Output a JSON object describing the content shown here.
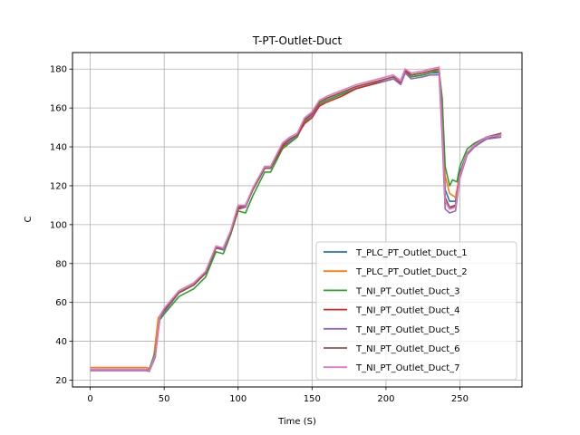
{
  "chart_data": {
    "type": "line",
    "title": "T-PT-Outlet-Duct",
    "xlabel": "Time (S)",
    "ylabel": "C",
    "xlim": [
      -12,
      292
    ],
    "ylim": [
      16.5,
      188.5
    ],
    "xticks": [
      0,
      50,
      100,
      150,
      200,
      250
    ],
    "yticks": [
      20,
      40,
      60,
      80,
      100,
      120,
      140,
      160,
      180
    ],
    "grid": true,
    "legend_position": "lower-right",
    "series": [
      {
        "name": "T_PLC_PT_Outlet_Duct_1",
        "color": "#1f77b4",
        "points": [
          [
            0,
            25.5
          ],
          [
            38,
            25.5
          ],
          [
            40,
            25
          ],
          [
            43,
            30
          ],
          [
            46,
            50
          ],
          [
            50,
            56
          ],
          [
            60,
            65
          ],
          [
            70,
            69
          ],
          [
            78,
            75
          ],
          [
            85,
            88
          ],
          [
            90,
            88
          ],
          [
            95,
            96
          ],
          [
            100,
            108
          ],
          [
            105,
            110
          ],
          [
            110,
            118
          ],
          [
            118,
            129
          ],
          [
            122,
            129
          ],
          [
            130,
            140
          ],
          [
            135,
            144
          ],
          [
            140,
            146
          ],
          [
            145,
            154
          ],
          [
            150,
            156
          ],
          [
            155,
            162
          ],
          [
            160,
            164
          ],
          [
            170,
            167
          ],
          [
            180,
            170
          ],
          [
            190,
            172
          ],
          [
            200,
            174
          ],
          [
            205,
            175
          ],
          [
            210,
            173
          ],
          [
            213,
            178
          ],
          [
            217,
            176
          ],
          [
            225,
            177
          ],
          [
            230,
            178
          ],
          [
            236,
            178
          ],
          [
            238,
            160
          ],
          [
            240,
            118
          ],
          [
            243,
            112
          ],
          [
            247,
            112
          ],
          [
            250,
            127
          ],
          [
            255,
            137
          ],
          [
            260,
            141
          ],
          [
            268,
            144
          ],
          [
            278,
            146
          ]
        ]
      },
      {
        "name": "T_PLC_PT_Outlet_Duct_2",
        "color": "#ff7f0e",
        "points": [
          [
            0,
            26.5
          ],
          [
            38,
            26.5
          ],
          [
            40,
            26
          ],
          [
            43,
            32
          ],
          [
            46,
            52
          ],
          [
            50,
            56
          ],
          [
            60,
            66
          ],
          [
            70,
            70
          ],
          [
            78,
            75
          ],
          [
            85,
            88
          ],
          [
            90,
            88
          ],
          [
            95,
            96
          ],
          [
            100,
            109
          ],
          [
            105,
            110
          ],
          [
            110,
            118
          ],
          [
            118,
            129
          ],
          [
            122,
            129
          ],
          [
            130,
            141
          ],
          [
            135,
            144
          ],
          [
            140,
            146
          ],
          [
            145,
            154
          ],
          [
            150,
            157
          ],
          [
            155,
            163
          ],
          [
            160,
            165
          ],
          [
            170,
            168
          ],
          [
            180,
            171
          ],
          [
            190,
            173
          ],
          [
            200,
            175
          ],
          [
            205,
            176
          ],
          [
            210,
            174
          ],
          [
            213,
            179
          ],
          [
            217,
            177
          ],
          [
            225,
            178
          ],
          [
            230,
            179
          ],
          [
            236,
            179
          ],
          [
            238,
            165
          ],
          [
            240,
            125
          ],
          [
            243,
            116
          ],
          [
            247,
            114
          ],
          [
            250,
            126
          ],
          [
            255,
            137
          ],
          [
            260,
            141
          ],
          [
            268,
            145
          ],
          [
            278,
            147
          ]
        ]
      },
      {
        "name": "T_NI_PT_Outlet_Duct_3",
        "color": "#2ca02c",
        "points": [
          [
            0,
            25.5
          ],
          [
            38,
            25.5
          ],
          [
            40,
            25.5
          ],
          [
            44,
            35
          ],
          [
            47,
            51
          ],
          [
            50,
            54
          ],
          [
            60,
            63
          ],
          [
            70,
            67
          ],
          [
            78,
            73
          ],
          [
            85,
            86
          ],
          [
            90,
            85
          ],
          [
            95,
            95
          ],
          [
            100,
            107
          ],
          [
            105,
            106
          ],
          [
            110,
            115
          ],
          [
            118,
            127
          ],
          [
            122,
            127
          ],
          [
            130,
            139
          ],
          [
            135,
            142
          ],
          [
            140,
            145
          ],
          [
            145,
            153
          ],
          [
            150,
            156
          ],
          [
            155,
            162
          ],
          [
            160,
            164
          ],
          [
            170,
            167
          ],
          [
            180,
            170
          ],
          [
            190,
            172
          ],
          [
            200,
            174
          ],
          [
            205,
            175
          ],
          [
            210,
            173
          ],
          [
            213,
            178
          ],
          [
            217,
            176
          ],
          [
            225,
            177
          ],
          [
            230,
            178
          ],
          [
            236,
            179
          ],
          [
            238,
            165
          ],
          [
            240,
            130
          ],
          [
            243,
            120
          ],
          [
            245,
            123
          ],
          [
            248,
            122
          ],
          [
            250,
            130
          ],
          [
            255,
            139
          ],
          [
            260,
            142
          ],
          [
            268,
            145
          ],
          [
            278,
            146
          ]
        ]
      },
      {
        "name": "T_NI_PT_Outlet_Duct_4",
        "color": "#d62728",
        "points": [
          [
            0,
            25
          ],
          [
            38,
            25
          ],
          [
            40,
            25
          ],
          [
            44,
            33
          ],
          [
            47,
            53
          ],
          [
            50,
            56
          ],
          [
            60,
            65
          ],
          [
            70,
            69
          ],
          [
            78,
            75
          ],
          [
            85,
            88
          ],
          [
            90,
            87
          ],
          [
            95,
            96
          ],
          [
            100,
            108
          ],
          [
            105,
            109
          ],
          [
            110,
            118
          ],
          [
            118,
            129
          ],
          [
            122,
            129
          ],
          [
            130,
            140
          ],
          [
            135,
            143
          ],
          [
            140,
            146
          ],
          [
            145,
            152
          ],
          [
            150,
            155
          ],
          [
            155,
            161
          ],
          [
            160,
            163
          ],
          [
            170,
            166
          ],
          [
            180,
            170
          ],
          [
            190,
            172
          ],
          [
            200,
            174
          ],
          [
            205,
            175
          ],
          [
            210,
            173
          ],
          [
            213,
            179
          ],
          [
            217,
            177
          ],
          [
            225,
            178
          ],
          [
            230,
            179
          ],
          [
            236,
            180
          ],
          [
            238,
            150
          ],
          [
            240,
            112
          ],
          [
            243,
            108
          ],
          [
            247,
            110
          ],
          [
            250,
            126
          ],
          [
            255,
            137
          ],
          [
            260,
            141
          ],
          [
            268,
            145
          ],
          [
            278,
            146
          ]
        ]
      },
      {
        "name": "T_NI_PT_Outlet_Duct_5",
        "color": "#9467bd",
        "points": [
          [
            0,
            25
          ],
          [
            38,
            25
          ],
          [
            40,
            24.5
          ],
          [
            44,
            32
          ],
          [
            47,
            52
          ],
          [
            50,
            55
          ],
          [
            60,
            65
          ],
          [
            70,
            69
          ],
          [
            78,
            75
          ],
          [
            85,
            88
          ],
          [
            90,
            87
          ],
          [
            95,
            96
          ],
          [
            100,
            109
          ],
          [
            105,
            109
          ],
          [
            110,
            118
          ],
          [
            118,
            129
          ],
          [
            122,
            129
          ],
          [
            130,
            141
          ],
          [
            135,
            143
          ],
          [
            140,
            146
          ],
          [
            145,
            154
          ],
          [
            150,
            156
          ],
          [
            155,
            163
          ],
          [
            160,
            165
          ],
          [
            170,
            168
          ],
          [
            180,
            171
          ],
          [
            190,
            173
          ],
          [
            200,
            174
          ],
          [
            205,
            175
          ],
          [
            210,
            172
          ],
          [
            213,
            178
          ],
          [
            217,
            175
          ],
          [
            225,
            176
          ],
          [
            230,
            177
          ],
          [
            236,
            177
          ],
          [
            238,
            145
          ],
          [
            240,
            108
          ],
          [
            243,
            106
          ],
          [
            247,
            107
          ],
          [
            250,
            124
          ],
          [
            255,
            136
          ],
          [
            260,
            140
          ],
          [
            268,
            144
          ],
          [
            278,
            145
          ]
        ]
      },
      {
        "name": "T_NI_PT_Outlet_Duct_6",
        "color": "#8c564b",
        "points": [
          [
            0,
            25.5
          ],
          [
            38,
            25.5
          ],
          [
            40,
            25
          ],
          [
            44,
            33
          ],
          [
            47,
            53
          ],
          [
            50,
            56
          ],
          [
            60,
            65
          ],
          [
            70,
            69
          ],
          [
            78,
            75
          ],
          [
            85,
            88
          ],
          [
            90,
            88
          ],
          [
            95,
            96
          ],
          [
            100,
            109
          ],
          [
            105,
            110
          ],
          [
            110,
            118
          ],
          [
            118,
            129
          ],
          [
            122,
            129
          ],
          [
            130,
            141
          ],
          [
            135,
            144
          ],
          [
            140,
            146
          ],
          [
            145,
            154
          ],
          [
            150,
            157
          ],
          [
            155,
            163
          ],
          [
            160,
            165
          ],
          [
            170,
            168
          ],
          [
            180,
            171
          ],
          [
            190,
            173
          ],
          [
            200,
            175
          ],
          [
            205,
            176
          ],
          [
            210,
            174
          ],
          [
            213,
            180
          ],
          [
            217,
            177
          ],
          [
            225,
            178
          ],
          [
            230,
            179
          ],
          [
            236,
            180
          ],
          [
            238,
            155
          ],
          [
            240,
            114
          ],
          [
            243,
            109
          ],
          [
            247,
            110
          ],
          [
            250,
            126
          ],
          [
            255,
            137
          ],
          [
            260,
            141
          ],
          [
            268,
            145
          ],
          [
            278,
            147
          ]
        ]
      },
      {
        "name": "T_NI_PT_Outlet_Duct_7",
        "color": "#e377c2",
        "points": [
          [
            0,
            25.5
          ],
          [
            38,
            25.5
          ],
          [
            40,
            25
          ],
          [
            44,
            33
          ],
          [
            47,
            53
          ],
          [
            50,
            57
          ],
          [
            60,
            66
          ],
          [
            70,
            70
          ],
          [
            78,
            76
          ],
          [
            85,
            89
          ],
          [
            90,
            88
          ],
          [
            95,
            97
          ],
          [
            100,
            110
          ],
          [
            105,
            110
          ],
          [
            110,
            119
          ],
          [
            118,
            130
          ],
          [
            122,
            130
          ],
          [
            130,
            142
          ],
          [
            135,
            145
          ],
          [
            140,
            147
          ],
          [
            145,
            155
          ],
          [
            150,
            158
          ],
          [
            155,
            164
          ],
          [
            160,
            166
          ],
          [
            170,
            169
          ],
          [
            180,
            172
          ],
          [
            190,
            174
          ],
          [
            200,
            176
          ],
          [
            205,
            177
          ],
          [
            210,
            174
          ],
          [
            213,
            180
          ],
          [
            217,
            178
          ],
          [
            225,
            179
          ],
          [
            230,
            180
          ],
          [
            236,
            181
          ],
          [
            238,
            150
          ],
          [
            240,
            112
          ],
          [
            243,
            108
          ],
          [
            247,
            109
          ],
          [
            250,
            125
          ],
          [
            255,
            137
          ],
          [
            260,
            141
          ],
          [
            268,
            145
          ],
          [
            278,
            146
          ]
        ]
      }
    ]
  }
}
